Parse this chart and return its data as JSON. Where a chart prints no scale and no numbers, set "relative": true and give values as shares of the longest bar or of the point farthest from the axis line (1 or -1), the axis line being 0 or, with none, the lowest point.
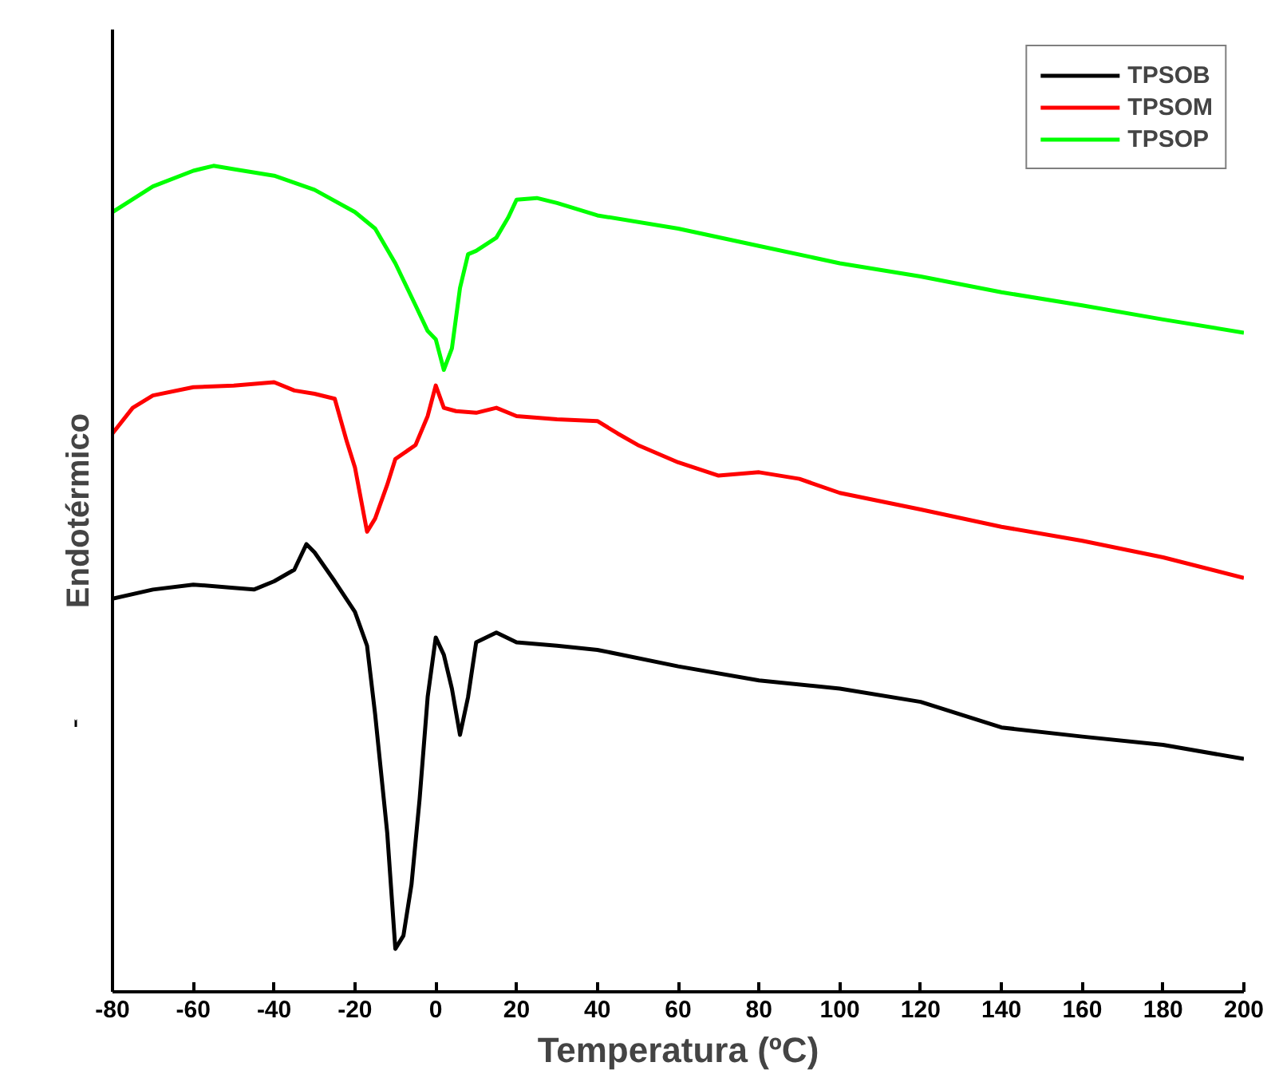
{
  "chart_data": {
    "type": "line",
    "relative": true,
    "xlabel": "Temperatura (ºC)",
    "ylabel": "Endotérmico",
    "xlim": [
      -80,
      200
    ],
    "xticks": [
      -80,
      -60,
      -40,
      -20,
      0,
      20,
      40,
      60,
      80,
      100,
      120,
      140,
      160,
      180,
      200
    ],
    "grid": false,
    "legend": "top right",
    "marker": "none",
    "line_style": "solid",
    "series": [
      {
        "name": "TPSOB",
        "color": "#000000",
        "x": [
          -80,
          -70,
          -60,
          -50,
          -45,
          -40,
          -35,
          -32,
          -30,
          -25,
          -20,
          -17,
          -15,
          -12,
          -10,
          -8,
          -6,
          -4,
          -2,
          0,
          2,
          4,
          6,
          8,
          10,
          15,
          20,
          30,
          40,
          60,
          80,
          100,
          120,
          140,
          160,
          180,
          200
        ],
        "values": [
          0.476,
          0.487,
          0.493,
          0.489,
          0.487,
          0.497,
          0.511,
          0.542,
          0.532,
          0.497,
          0.46,
          0.419,
          0.336,
          0.192,
          0.052,
          0.068,
          0.13,
          0.233,
          0.357,
          0.429,
          0.408,
          0.367,
          0.311,
          0.357,
          0.423,
          0.435,
          0.423,
          0.419,
          0.414,
          0.394,
          0.377,
          0.367,
          0.351,
          0.32,
          0.309,
          0.299,
          0.282
        ]
      },
      {
        "name": "TPSOM",
        "color": "#ff0000",
        "x": [
          -80,
          -75,
          -70,
          -60,
          -50,
          -40,
          -35,
          -30,
          -25,
          -22,
          -20,
          -17,
          -15,
          -12,
          -10,
          -5,
          -2,
          0,
          2,
          5,
          10,
          15,
          20,
          30,
          40,
          45,
          50,
          60,
          70,
          80,
          90,
          100,
          120,
          140,
          160,
          180,
          200
        ],
        "values": [
          0.676,
          0.707,
          0.722,
          0.732,
          0.734,
          0.738,
          0.728,
          0.724,
          0.718,
          0.666,
          0.635,
          0.557,
          0.573,
          0.614,
          0.645,
          0.662,
          0.697,
          0.734,
          0.707,
          0.703,
          0.701,
          0.707,
          0.697,
          0.693,
          0.691,
          0.676,
          0.662,
          0.641,
          0.625,
          0.629,
          0.621,
          0.604,
          0.584,
          0.563,
          0.546,
          0.526,
          0.501
        ]
      },
      {
        "name": "TPSOP",
        "color": "#00ff00",
        "x": [
          -80,
          -70,
          -60,
          -55,
          -50,
          -40,
          -30,
          -20,
          -15,
          -10,
          -5,
          -2,
          0,
          2,
          4,
          6,
          8,
          10,
          15,
          18,
          20,
          25,
          30,
          40,
          60,
          80,
          100,
          120,
          140,
          160,
          180,
          200
        ],
        "values": [
          0.944,
          0.975,
          0.994,
          1.0,
          0.996,
          0.988,
          0.971,
          0.944,
          0.924,
          0.882,
          0.831,
          0.8,
          0.79,
          0.753,
          0.779,
          0.852,
          0.893,
          0.897,
          0.913,
          0.938,
          0.959,
          0.961,
          0.955,
          0.94,
          0.924,
          0.903,
          0.882,
          0.866,
          0.847,
          0.831,
          0.814,
          0.798
        ]
      }
    ]
  }
}
